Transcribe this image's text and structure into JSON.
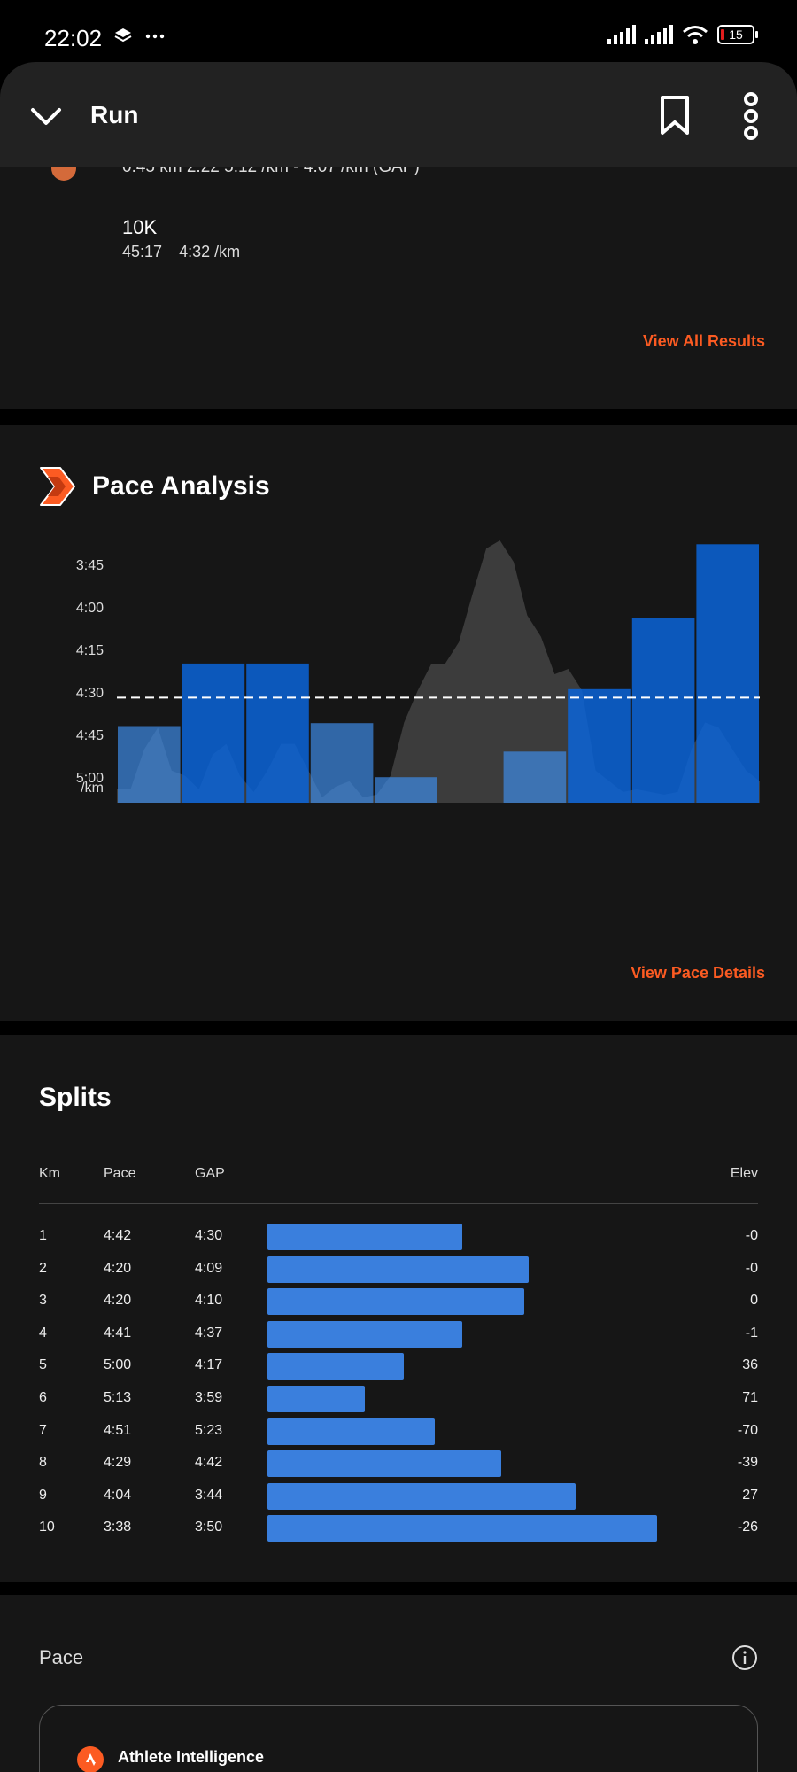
{
  "status_bar": {
    "time": "22:02",
    "battery": "15"
  },
  "header": {
    "title": "Run"
  },
  "results": {
    "partial_segment": "0.45 km    2:22    5:12 /km - 4:07 /km (GAP)",
    "segment": {
      "name": "10K",
      "time": "45:17",
      "pace": "4:32 /km"
    },
    "view_all_label": "View All Results"
  },
  "pace_analysis": {
    "title": "Pace Analysis",
    "view_details_label": "View Pace Details"
  },
  "chart_data": {
    "type": "bar",
    "categories": [
      "1",
      "2",
      "3",
      "4",
      "5",
      "6",
      "7",
      "8",
      "9",
      "10"
    ],
    "series": [
      {
        "values": [
          4.7,
          4.333,
          4.333,
          4.683,
          5.0,
          5.217,
          4.85,
          4.483,
          4.067,
          3.633
        ]
      }
    ],
    "gap_values": [
      4.5,
      4.15,
      4.167,
      4.617,
      4.283,
      3.983,
      5.383,
      4.7,
      3.733,
      3.833
    ],
    "average_pace": 4.533,
    "y_ticks": [
      "3:45",
      "4:00",
      "4:15",
      "4:30",
      "4:45",
      "5:00"
    ],
    "y_tick_values": [
      3.75,
      4.0,
      4.25,
      4.5,
      4.75,
      5.0
    ],
    "y_unit": "/km",
    "ylim": [
      5.15,
      3.6
    ],
    "elevation_profile": [
      0.05,
      0.05,
      0.2,
      0.28,
      0.12,
      0.1,
      0.05,
      0.18,
      0.22,
      0.1,
      0.04,
      0.12,
      0.22,
      0.22,
      0.12,
      0.02,
      0.06,
      0.08,
      0.02,
      0.03,
      0.1,
      0.3,
      0.42,
      0.52,
      0.52,
      0.6,
      0.78,
      0.95,
      0.98,
      0.9,
      0.7,
      0.62,
      0.48,
      0.5,
      0.42,
      0.12,
      0.08,
      0.04,
      0.05,
      0.04,
      0.03,
      0.04,
      0.2,
      0.3,
      0.28,
      0.2,
      0.12,
      0.08
    ],
    "colors": {
      "pace_bar": "#0a64d8",
      "gap_bar": "#3a86e0",
      "elevation": "#4a4a4a",
      "avg_line": "#ffffff"
    }
  },
  "splits": {
    "title": "Splits",
    "headers": {
      "km": "Km",
      "pace": "Pace",
      "gap": "GAP",
      "elev": "Elev"
    },
    "rows": [
      {
        "km": "1",
        "pace": "4:42",
        "gap": "4:30",
        "elev": "-0",
        "bar": 0.5
      },
      {
        "km": "2",
        "pace": "4:20",
        "gap": "4:09",
        "elev": "-0",
        "bar": 0.67
      },
      {
        "km": "3",
        "pace": "4:20",
        "gap": "4:10",
        "elev": "0",
        "bar": 0.66
      },
      {
        "km": "4",
        "pace": "4:41",
        "gap": "4:37",
        "elev": "-1",
        "bar": 0.5
      },
      {
        "km": "5",
        "pace": "5:00",
        "gap": "4:17",
        "elev": "36",
        "bar": 0.35
      },
      {
        "km": "6",
        "pace": "5:13",
        "gap": "3:59",
        "elev": "71",
        "bar": 0.25
      },
      {
        "km": "7",
        "pace": "4:51",
        "gap": "5:23",
        "elev": "-70",
        "bar": 0.43
      },
      {
        "km": "8",
        "pace": "4:29",
        "gap": "4:42",
        "elev": "-39",
        "bar": 0.6
      },
      {
        "km": "9",
        "pace": "4:04",
        "gap": "3:44",
        "elev": "27",
        "bar": 0.79
      },
      {
        "km": "10",
        "pace": "3:38",
        "gap": "3:50",
        "elev": "-26",
        "bar": 1.0
      }
    ]
  },
  "bottom": {
    "section_label": "Pace",
    "ai_label": "Athlete Intelligence"
  },
  "icons": {
    "back": "chevron-down-icon",
    "bookmark": "bookmark-icon",
    "more": "more-vertical-icon",
    "info": "info-icon"
  }
}
